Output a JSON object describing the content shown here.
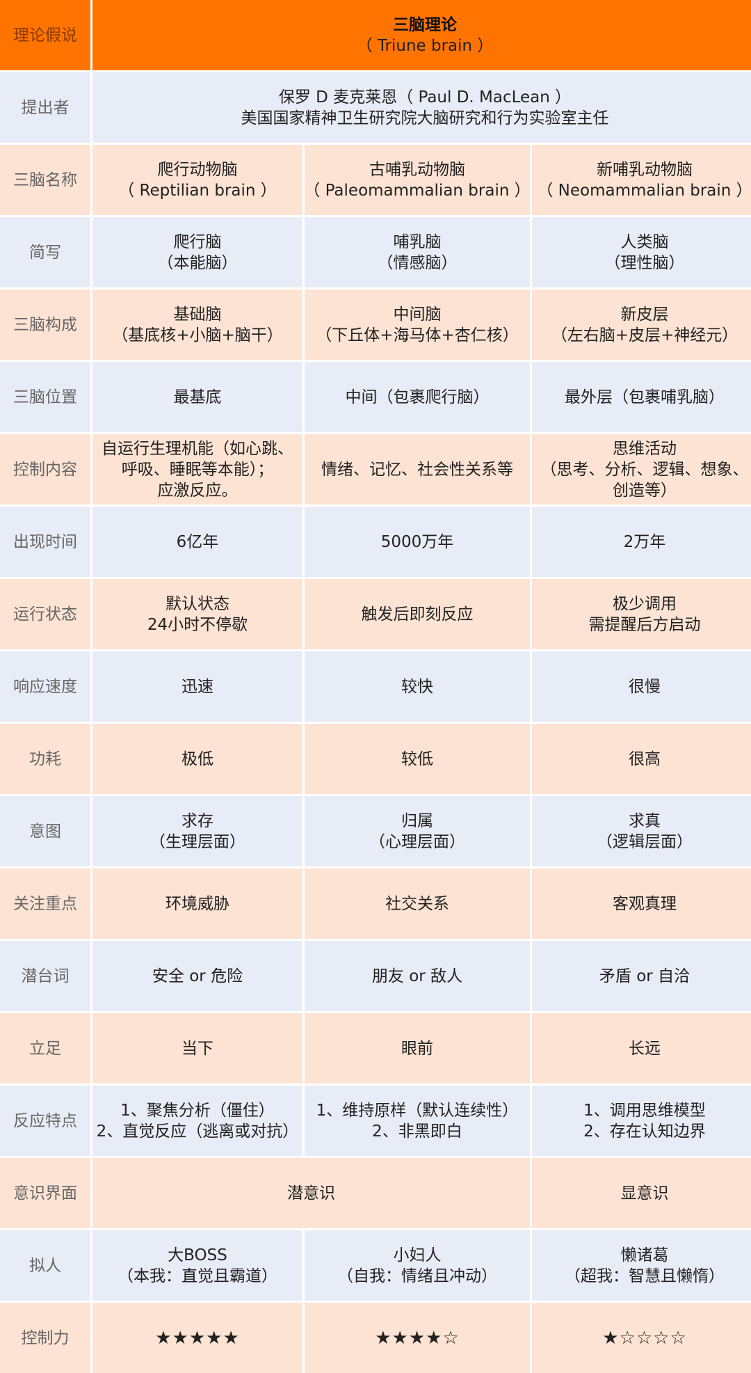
{
  "header": {
    "label": "理论假说",
    "title": "三脑理论",
    "subtitle": "（ Triune brain ）"
  },
  "colors": {
    "header": "#ff7300",
    "row_blue": "#e8ecf6",
    "row_peach": "#fde3d3"
  },
  "rows": [
    {
      "label": "提出者",
      "span": 3,
      "cells": [
        [
          "保罗 D 麦克莱恩（ Paul D. MacLean ）",
          "美国国家精神卫生研究院大脑研究和行为实验室主任"
        ]
      ]
    },
    {
      "label": "三脑名称",
      "cells": [
        [
          "爬行动物脑",
          "（ Reptilian brain ）"
        ],
        [
          "古哺乳动物脑",
          "（ Paleomammalian brain ）"
        ],
        [
          "新哺乳动物脑",
          "（ Neomammalian brain ）"
        ]
      ]
    },
    {
      "label": "简写",
      "cells": [
        [
          "爬行脑",
          "（本能脑）"
        ],
        [
          "哺乳脑",
          "（情感脑）"
        ],
        [
          "人类脑",
          "（理性脑）"
        ]
      ]
    },
    {
      "label": "三脑构成",
      "cells": [
        [
          "基础脑",
          "（基底核+小脑+脑干）"
        ],
        [
          "中间脑",
          "（下丘体+海马体+杏仁核）"
        ],
        [
          "新皮层",
          "（左右脑+皮层+神经元）"
        ]
      ]
    },
    {
      "label": "三脑位置",
      "cells": [
        [
          "最基底"
        ],
        [
          "中间（包裹爬行脑）"
        ],
        [
          "最外层（包裹哺乳脑）"
        ]
      ]
    },
    {
      "label": "控制内容",
      "cells": [
        [
          "自运行生理机能（如心跳、",
          "呼吸、睡眠等本能）；",
          "应激反应。"
        ],
        [
          "情绪、记忆、社会性关系等"
        ],
        [
          "思维活动",
          "（思考、分析、逻辑、想象、",
          "创造等）"
        ]
      ]
    },
    {
      "label": "出现时间",
      "cells": [
        [
          "6亿年"
        ],
        [
          "5000万年"
        ],
        [
          "2万年"
        ]
      ]
    },
    {
      "label": "运行状态",
      "cells": [
        [
          "默认状态",
          "24小时不停歇"
        ],
        [
          "触发后即刻反应"
        ],
        [
          "极少调用",
          "需提醒后方启动"
        ]
      ]
    },
    {
      "label": "响应速度",
      "cells": [
        [
          "迅速"
        ],
        [
          "较快"
        ],
        [
          "很慢"
        ]
      ]
    },
    {
      "label": "功耗",
      "cells": [
        [
          "极低"
        ],
        [
          "较低"
        ],
        [
          "很高"
        ]
      ]
    },
    {
      "label": "意图",
      "cells": [
        [
          "求存",
          "（生理层面）"
        ],
        [
          "归属",
          "（心理层面）"
        ],
        [
          "求真",
          "（逻辑层面）"
        ]
      ]
    },
    {
      "label": "关注重点",
      "cells": [
        [
          "环境威胁"
        ],
        [
          "社交关系"
        ],
        [
          "客观真理"
        ]
      ]
    },
    {
      "label": "潜台词",
      "cells": [
        [
          "安全 or 危险"
        ],
        [
          "朋友 or 敌人"
        ],
        [
          "矛盾 or 自洽"
        ]
      ]
    },
    {
      "label": "立足",
      "cells": [
        [
          "当下"
        ],
        [
          "眼前"
        ],
        [
          "长远"
        ]
      ]
    },
    {
      "label": "反应特点",
      "cells": [
        [
          "1、聚焦分析（僵住）",
          "2、直觉反应（逃离或对抗）"
        ],
        [
          "1、维持原样（默认连续性）",
          "2、非黑即白"
        ],
        [
          "1、调用思维模型",
          "2、存在认知边界"
        ]
      ]
    },
    {
      "label": "意识界面",
      "spans": [
        2,
        1
      ],
      "cells": [
        [
          "潜意识"
        ],
        [
          "显意识"
        ]
      ]
    },
    {
      "label": "拟人",
      "cells": [
        [
          "大BOSS",
          "（本我：直觉且霸道）"
        ],
        [
          "小妇人",
          "（自我：情绪且冲动）"
        ],
        [
          "懒诸葛",
          "（超我：智慧且懒惰）"
        ]
      ]
    },
    {
      "label": "控制力",
      "ratings": [
        5,
        4,
        1
      ],
      "rating_max": 5
    }
  ]
}
